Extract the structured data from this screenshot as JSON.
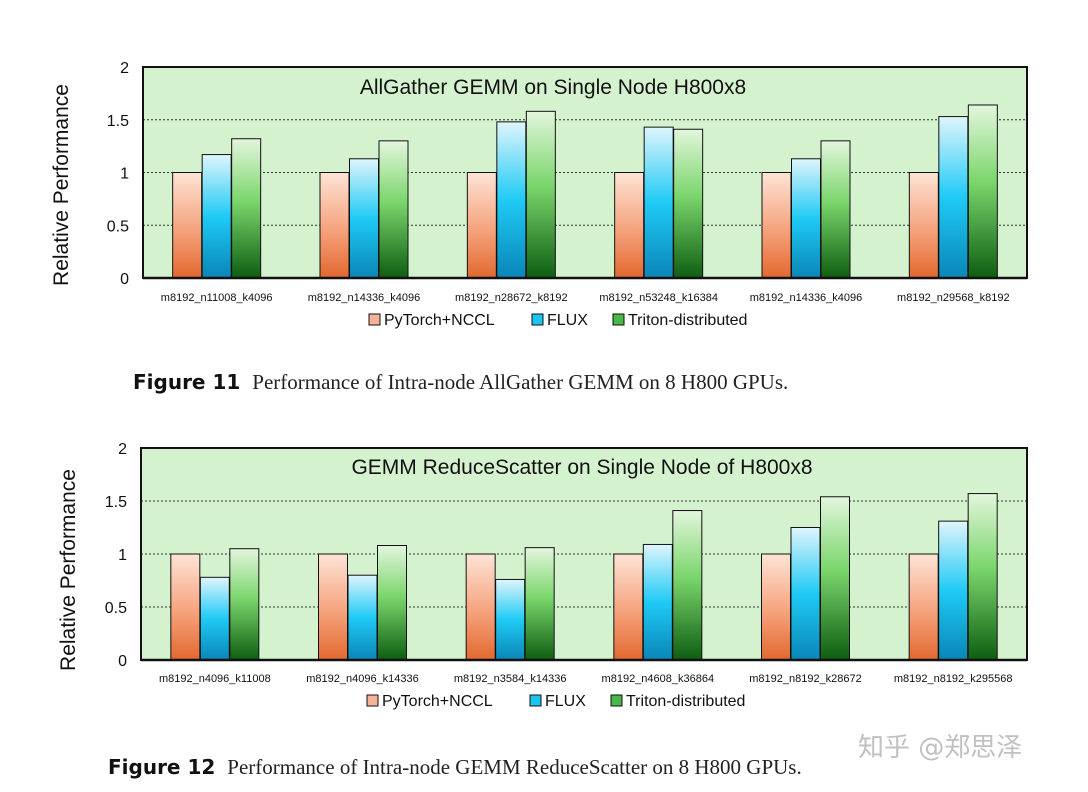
{
  "chart_data": [
    {
      "type": "bar",
      "title": "AllGather GEMM on Single Node  H800x8",
      "ylabel": "Relative Performance",
      "ylim": [
        0,
        2
      ],
      "yticks": [
        "0",
        "0.5",
        "1",
        "1.5",
        "2"
      ],
      "categories": [
        "m8192_n11008_k4096",
        "m8192_n14336_k4096",
        "m8192_n28672_k8192",
        "m8192_n53248_k16384",
        "m8192_n14336_k4096",
        "m8192_n29568_k8192"
      ],
      "series": [
        {
          "name": "PyTorch+NCCL",
          "values": [
            1.0,
            1.0,
            1.0,
            1.0,
            1.0,
            1.0
          ]
        },
        {
          "name": "FLUX",
          "values": [
            1.17,
            1.13,
            1.48,
            1.43,
            1.13,
            1.53
          ]
        },
        {
          "name": "Triton-distributed",
          "values": [
            1.32,
            1.3,
            1.58,
            1.41,
            1.3,
            1.64
          ]
        }
      ],
      "legend_position": "bottom",
      "grid": true
    },
    {
      "type": "bar",
      "title": "GEMM ReduceScatter on Single Node of H800x8",
      "ylabel": "Relative Performance",
      "ylim": [
        0,
        2
      ],
      "yticks": [
        "0",
        "0.5",
        "1",
        "1.5",
        "2"
      ],
      "categories": [
        "m8192_n4096_k11008",
        "m8192_n4096_k14336",
        "m8192_n3584_k14336",
        "m8192_n4608_k36864",
        "m8192_n8192_k28672",
        "m8192_n8192_k295568"
      ],
      "series": [
        {
          "name": "PyTorch+NCCL",
          "values": [
            1.0,
            1.0,
            1.0,
            1.0,
            1.0,
            1.0
          ]
        },
        {
          "name": "FLUX",
          "values": [
            0.78,
            0.8,
            0.76,
            1.09,
            1.25,
            1.31
          ]
        },
        {
          "name": "Triton-distributed",
          "values": [
            1.05,
            1.08,
            1.06,
            1.41,
            1.54,
            1.57
          ]
        }
      ],
      "legend_position": "bottom",
      "grid": true
    }
  ],
  "captions": [
    {
      "label": "Figure 11",
      "text": "Performance of Intra-node AllGather GEMM on 8 H800 GPUs."
    },
    {
      "label": "Figure 12",
      "text": "Performance of Intra-node GEMM ReduceScatter on 8 H800 GPUs."
    }
  ],
  "watermark": "知乎 @郑思泽"
}
